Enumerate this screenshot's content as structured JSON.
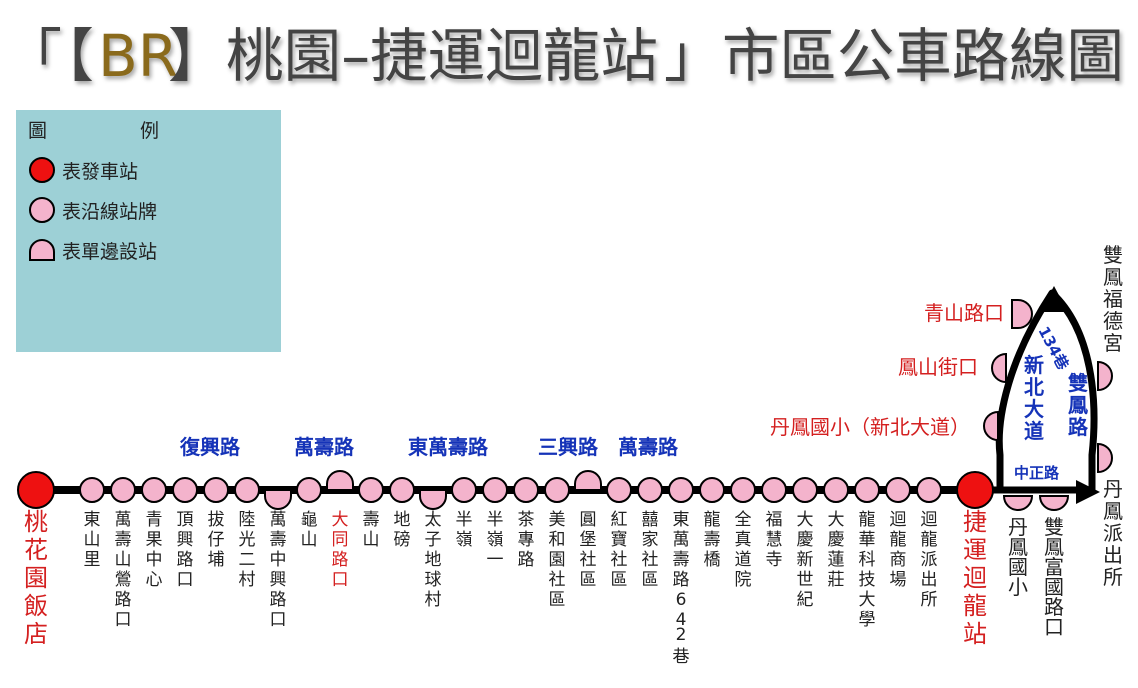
{
  "title": {
    "open_quote": "「",
    "open_bracket": "【",
    "route_code": "BR",
    "close_bracket": "】",
    "route_name": "桃園–捷運迴龍站",
    "close_quote": "」",
    "suffix": "市區公車路線圖"
  },
  "legend": {
    "title_left": "圖",
    "title_right": "例",
    "items": [
      {
        "symbol": "terminal",
        "label": "表發車站"
      },
      {
        "symbol": "stop",
        "label": "表沿線站牌"
      },
      {
        "symbol": "one-side",
        "label": "表單邊設站"
      }
    ]
  },
  "colors": {
    "terminal": "#ee1111",
    "stop": "#f4b3cc",
    "red_text": "#d42020",
    "road_label": "#1533b8",
    "legend_bg": "#9dd0d6",
    "route_code": "#8a6a1c"
  },
  "roads": [
    {
      "text": "復興路"
    },
    {
      "text": "萬壽路"
    },
    {
      "text": "東萬壽路"
    },
    {
      "text": "三興路"
    },
    {
      "text": "萬壽路"
    }
  ],
  "main_stops": [
    {
      "label": "桃花園飯店",
      "type": "terminal",
      "highlight": true
    },
    {
      "label": "東山里",
      "type": "stop"
    },
    {
      "label": "萬壽山鶯路口",
      "type": "stop"
    },
    {
      "label": "青果中心",
      "type": "stop"
    },
    {
      "label": "頂興路口",
      "type": "stop"
    },
    {
      "label": "拔仔埔",
      "type": "stop"
    },
    {
      "label": "陸光二村",
      "type": "stop"
    },
    {
      "label": "萬壽中興路口",
      "type": "one-side-down"
    },
    {
      "label": "龜山",
      "type": "stop"
    },
    {
      "label": "大同路口",
      "type": "one-side-up",
      "highlight": true
    },
    {
      "label": "壽山",
      "type": "stop"
    },
    {
      "label": "地磅",
      "type": "stop"
    },
    {
      "label": "太子地球村",
      "type": "one-side-down"
    },
    {
      "label": "半嶺",
      "type": "stop"
    },
    {
      "label": "半嶺一",
      "type": "stop"
    },
    {
      "label": "茶專路",
      "type": "stop"
    },
    {
      "label": "美和園社區",
      "type": "stop"
    },
    {
      "label": "圓堡社區",
      "type": "one-side-up"
    },
    {
      "label": "紅寶社區",
      "type": "stop"
    },
    {
      "label": "囍家社區",
      "type": "stop"
    },
    {
      "label": "東萬壽路64",
      "type": "stop",
      "extra": "2",
      "extra2": "巷"
    },
    {
      "label": "龍壽橋",
      "type": "stop"
    },
    {
      "label": "全真道院",
      "type": "stop"
    },
    {
      "label": "福慧寺",
      "type": "stop"
    },
    {
      "label": "大慶新世紀",
      "type": "stop"
    },
    {
      "label": "大慶蓮莊",
      "type": "stop"
    },
    {
      "label": "龍華科技大學",
      "type": "stop"
    },
    {
      "label": "迴龍商場",
      "type": "stop"
    },
    {
      "label": "迴龍派出所",
      "type": "stop"
    },
    {
      "label": "捷運迴龍站",
      "type": "terminal",
      "highlight": true
    }
  ],
  "branch": {
    "lane_label": "134巷",
    "road_left": "新北大道",
    "road_right": "雙鳳路",
    "road_bottom": "中正路",
    "left_stops": [
      {
        "label": "青山路口"
      },
      {
        "label": "鳳山街口"
      },
      {
        "label": "丹鳳國小（新北大道）"
      }
    ],
    "right_stops": [
      {
        "label": "雙鳳福德宮"
      },
      {
        "label": "丹鳳派出所"
      }
    ],
    "bottom_stops": [
      {
        "label": "丹鳳國小"
      },
      {
        "label": "雙鳳富國路口"
      }
    ]
  }
}
